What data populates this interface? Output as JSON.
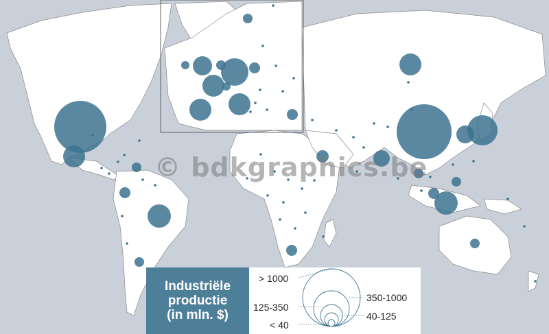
{
  "watermark": "© bdkgraphics.be",
  "legend": {
    "title_lines": [
      "Industriële",
      "productie",
      "(in mln. $)"
    ],
    "classes": [
      "> 1000",
      "350-1000",
      "125-350",
      "40-125",
      "< 40"
    ]
  },
  "colors": {
    "ocean": "#c9d0da",
    "land": "#ffffff",
    "border": "#8a8a8a",
    "bubble": "#3d7390",
    "legend_header": "#4e7f99"
  }
}
